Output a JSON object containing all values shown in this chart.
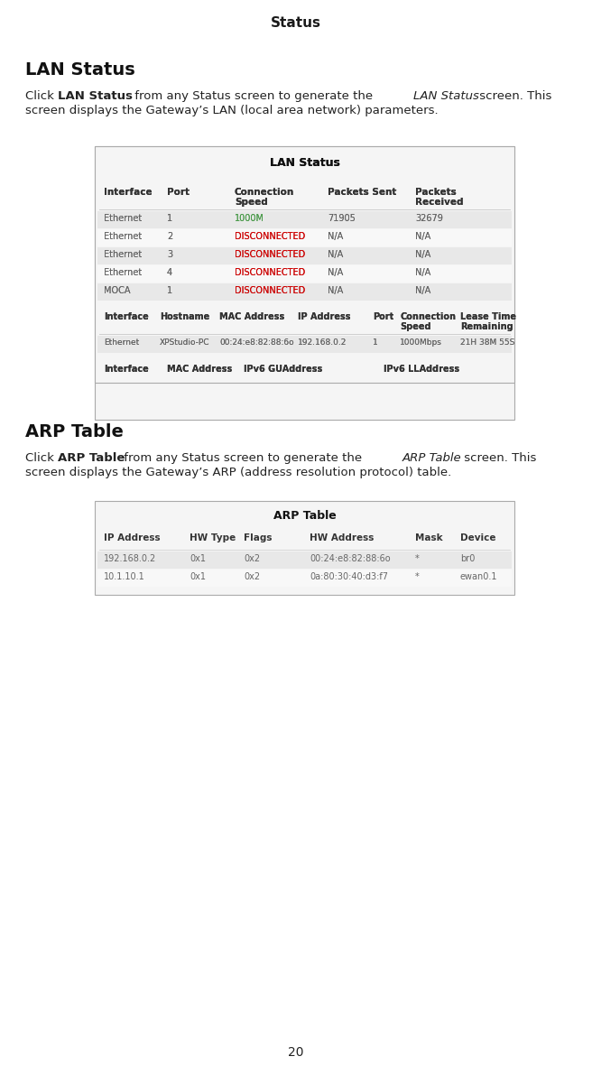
{
  "page_title": "Status",
  "bg_color": "#ffffff",
  "section1_heading": "LAN Status",
  "lan_table_title": "LAN Status",
  "lan_headers1": [
    "Interface",
    "Port",
    "Connection\nSpeed",
    "Packets Sent",
    "Packets\nReceived"
  ],
  "lan_rows1": [
    [
      "Ethernet",
      "1",
      "1000M",
      "71905",
      "32679"
    ],
    [
      "Ethernet",
      "2",
      "DISCONNECTED",
      "N/A",
      "N/A"
    ],
    [
      "Ethernet",
      "3",
      "DISCONNECTED",
      "N/A",
      "N/A"
    ],
    [
      "Ethernet",
      "4",
      "DISCONNECTED",
      "N/A",
      "N/A"
    ],
    [
      "MOCA",
      "1",
      "DISCONNECTED",
      "N/A",
      "N/A"
    ]
  ],
  "lan_row1_speed_color": "#4a9a4a",
  "lan_disconnected_color": "#cc0000",
  "lan_headers2": [
    "Interface",
    "Hostname",
    "MAC Address",
    "IP Address",
    "Port",
    "Connection\nSpeed",
    "Lease Time\nRemaining"
  ],
  "lan_rows2": [
    [
      "Ethernet",
      "XPStudio-PC",
      "00:24:e8:82:88:6o",
      "192.168.0.2",
      "1",
      "1000Mbps",
      "21H 38M 55S"
    ]
  ],
  "lan_headers3": [
    "Interface",
    "MAC Address",
    "IPv6 GUAddress",
    "IPv6 LLAddress"
  ],
  "section2_heading": "ARP Table",
  "arp_table_title": "ARP Table",
  "arp_headers": [
    "IP Address",
    "HW Type",
    "Flags",
    "HW Address",
    "Mask",
    "Device"
  ],
  "arp_rows": [
    [
      "192.168.0.2",
      "0x1",
      "0x2",
      "00:24:e8:82:88:6o",
      "*",
      "br0"
    ],
    [
      "10.1.10.1",
      "0x1",
      "0x2",
      "0a:80:30:40:d3:f7",
      "*",
      "ewan0.1"
    ]
  ],
  "page_number": "20",
  "table_border_color": "#aaaaaa",
  "header_text_color": "#333333",
  "data_text_color": "#666666",
  "lan_table_row_bg": "#e8e8e8",
  "lan_table_row_alt_bg": "#f0f0f0",
  "table_bg": "#f5f5f5"
}
